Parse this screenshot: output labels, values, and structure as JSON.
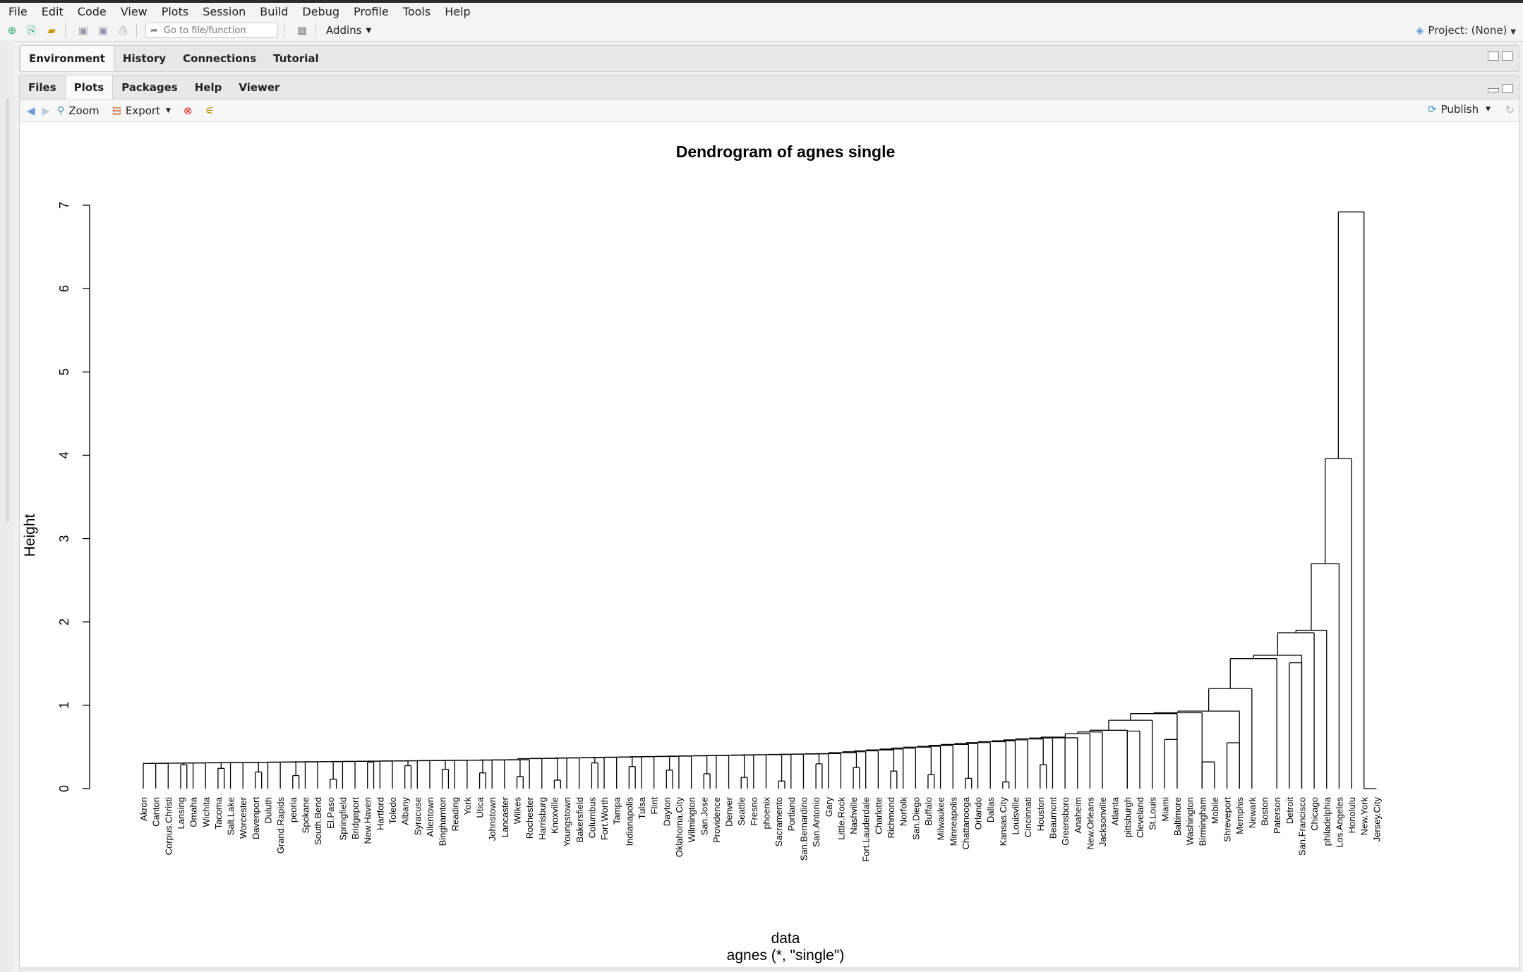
{
  "menu": [
    "File",
    "Edit",
    "Code",
    "View",
    "Plots",
    "Session",
    "Build",
    "Debug",
    "Profile",
    "Tools",
    "Help"
  ],
  "toolbar": {
    "goto_placeholder": "Go to file/function",
    "addins": "Addins"
  },
  "project": "Project: (None)",
  "top_tabs": [
    "Environment",
    "History",
    "Connections",
    "Tutorial"
  ],
  "bottom_tabs": [
    "Files",
    "Plots",
    "Packages",
    "Help",
    "Viewer"
  ],
  "plot_toolbar": {
    "zoom": "Zoom",
    "export": "Export",
    "publish": "Publish"
  },
  "chart_data": {
    "type": "dendrogram",
    "title": "Dendrogram of agnes single",
    "ylabel": "Height",
    "xlabel": "data",
    "sublabel": "agnes (*, \"single\")",
    "ylim": [
      0,
      7
    ],
    "yticks": [
      0,
      1,
      2,
      3,
      4,
      5,
      6,
      7
    ],
    "leaves": [
      "Akron",
      "Canton",
      "Corpus.Christi",
      "Lansing",
      "Omaha",
      "Wichita",
      "Tacoma",
      "Salt.Lake",
      "Worcester",
      "Davenport",
      "Duluth",
      "Grand.Rapids",
      "peoria",
      "Spokane",
      "South.Bend",
      "El.Paso",
      "Springfield",
      "Bridgeport",
      "New.Haven",
      "Hartford",
      "Toledo",
      "Albany",
      "Syracuse",
      "Allentown",
      "Binghamton",
      "Reading",
      "York",
      "Utica",
      "Johnstown",
      "Lancaster",
      "Wilkes",
      "Rochester",
      "Harrisburg",
      "Knoxville",
      "Youngstown",
      "Bakersfield",
      "Columbus",
      "Fort.Worth",
      "Tampa",
      "Indianapolis",
      "Tulsa",
      "Flint",
      "Dayton",
      "Oklahoma.City",
      "Wilmington",
      "San.Jose",
      "Providence",
      "Denver",
      "Seattle",
      "Fresno",
      "phoenix",
      "Sacramento",
      "Portland",
      "San.Bernardino",
      "San.Antonio",
      "Gary",
      "Little.Rock",
      "Nashville",
      "Fort.Lauderdale",
      "Charlotte",
      "Richmond",
      "Norfolk",
      "San.Diego",
      "Buffalo",
      "Milwaukee",
      "Minneapolis",
      "Chattanooga",
      "Orlando",
      "Dallas",
      "Kansas.City",
      "Louisville",
      "Cincinnati",
      "Houston",
      "Beaumont",
      "Greensboro",
      "Anaheim",
      "New.Orleans",
      "Jacksonville",
      "Atlanta",
      "pittsburgh",
      "Cleveland",
      "St.Louis",
      "Miami",
      "Baltimore",
      "Washington",
      "Birmingham",
      "Mobile",
      "Shreveport",
      "Memphis",
      "Newark",
      "Boston",
      "Paterson",
      "Detroit",
      "San.Francisco",
      "Chicago",
      "philadelphia",
      "Los.Angeles",
      "Honolulu",
      "New.York",
      "Jersey.City"
    ],
    "merges_approx": [
      {
        "leaves": [
          "New.York",
          "Jersey.City"
        ],
        "height": 6.92
      },
      {
        "leaves": [
          "Honolulu"
        ],
        "height": 3.96
      },
      {
        "leaves": [
          "Los.Angeles"
        ],
        "height": 2.7
      },
      {
        "leaves": [
          "philadelphia"
        ],
        "height": 1.9
      },
      {
        "leaves": [
          "Detroit",
          "San.Francisco"
        ],
        "height": 1.51
      },
      {
        "leaves": [
          "Boston",
          "Paterson"
        ],
        "height": 1.57
      },
      {
        "leaves": [
          "Newark"
        ],
        "height": 1.21
      },
      {
        "leaves": [
          "Birmingham",
          "Mobile"
        ],
        "height": 0.32
      },
      {
        "leaves": [
          "Shreveport",
          "Memphis"
        ],
        "height": 0.75
      },
      {
        "leaves": [
          "Baltimore",
          "Washington"
        ],
        "height": 0.64
      },
      {
        "leaves": [
          "Cleveland",
          "St.Louis"
        ],
        "height": 0.59
      },
      {
        "leaves": [
          "pittsburgh"
        ],
        "height": 0.69
      },
      {
        "leaves": [
          "Beaumont",
          "Greensboro"
        ],
        "height": 0.23
      },
      {
        "leaves": [
          "Dallas",
          "Kansas.City",
          "Louisville"
        ],
        "height": 0.42
      },
      {
        "leaves": [
          "Chattanooga",
          "Orlando"
        ],
        "height": 0.13
      }
    ]
  }
}
